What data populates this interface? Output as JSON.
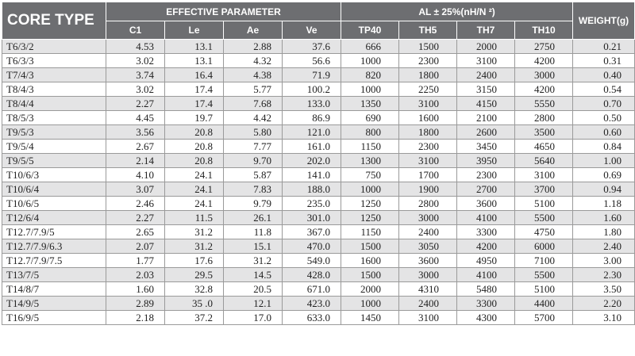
{
  "headers": {
    "core_type": "CORE TYPE",
    "effective_parameter": "EFFECTIVE PARAMETER",
    "al": "AL ± 25%(nH/N ²)",
    "weight": "WEIGHT(g)",
    "sub": [
      "C1",
      "Le",
      "Ae",
      "Ve",
      "TP40",
      "TH5",
      "TH7",
      "TH10"
    ]
  },
  "rows": [
    [
      "T6/3/2",
      "4.53",
      "13.1",
      "2.88",
      "37.6",
      "666",
      "1500",
      "2000",
      "2750",
      "0.21"
    ],
    [
      "T6/3/3",
      "3.02",
      "13.1",
      "4.32",
      "56.6",
      "1000",
      "2300",
      "3100",
      "4200",
      "0.31"
    ],
    [
      "T7/4/3",
      "3.74",
      "16.4",
      "4.38",
      "71.9",
      "820",
      "1800",
      "2400",
      "3000",
      "0.40"
    ],
    [
      "T8/4/3",
      "3.02",
      "17.4",
      "5.77",
      "100.2",
      "1000",
      "2250",
      "3150",
      "4200",
      "0.54"
    ],
    [
      "T8/4/4",
      "2.27",
      "17.4",
      "7.68",
      "133.0",
      "1350",
      "3100",
      "4150",
      "5550",
      "0.70"
    ],
    [
      "T8/5/3",
      "4.45",
      "19.7",
      "4.42",
      "86.9",
      "690",
      "1600",
      "2100",
      "2800",
      "0.50"
    ],
    [
      "T9/5/3",
      "3.56",
      "20.8",
      "5.80",
      "121.0",
      "800",
      "1800",
      "2600",
      "3500",
      "0.60"
    ],
    [
      "T9/5/4",
      "2.67",
      "20.8",
      "7.77",
      "161.0",
      "1150",
      "2300",
      "3450",
      "4650",
      "0.84"
    ],
    [
      "T9/5/5",
      "2.14",
      "20.8",
      "9.70",
      "202.0",
      "1300",
      "3100",
      "3950",
      "5640",
      "1.00"
    ],
    [
      "T10/6/3",
      "4.10",
      "24.1",
      "5.87",
      "141.0",
      "750",
      "1700",
      "2300",
      "3100",
      "0.69"
    ],
    [
      "T10/6/4",
      "3.07",
      "24.1",
      "7.83",
      "188.0",
      "1000",
      "1900",
      "2700",
      "3700",
      "0.94"
    ],
    [
      "T10/6/5",
      "2.46",
      "24.1",
      "9.79",
      "235.0",
      "1250",
      "2800",
      "3600",
      "5100",
      "1.18"
    ],
    [
      "T12/6/4",
      "2.27",
      "11.5",
      "26.1",
      "301.0",
      "1250",
      "3000",
      "4100",
      "5500",
      "1.60"
    ],
    [
      "T12.7/7.9/5",
      "2.65",
      "31.2",
      "11.8",
      "367.0",
      "1150",
      "2400",
      "3300",
      "4750",
      "1.80"
    ],
    [
      "T12.7/7.9/6.3",
      "2.07",
      "31.2",
      "15.1",
      "470.0",
      "1500",
      "3050",
      "4200",
      "6000",
      "2.40"
    ],
    [
      "T12.7/7.9/7.5",
      "1.77",
      "17.6",
      "31.2",
      "549.0",
      "1600",
      "3600",
      "4950",
      "7100",
      "3.00"
    ],
    [
      "T13/7/5",
      "2.03",
      "29.5",
      "14.5",
      "428.0",
      "1500",
      "3000",
      "4100",
      "5500",
      "2.30"
    ],
    [
      "T14/8/7",
      "1.60",
      "32.8",
      "20.5",
      "671.0",
      "2000",
      "4310",
      "5480",
      "5100",
      "3.50"
    ],
    [
      "T14/9/5",
      "2.89",
      "35 .0",
      "12.1",
      "423.0",
      "1000",
      "2400",
      "3300",
      "4400",
      "2.20"
    ],
    [
      "T16/9/5",
      "2.18",
      "37.2",
      "17.0",
      "633.0",
      "1450",
      "3100",
      "4300",
      "5700",
      "3.10"
    ]
  ]
}
